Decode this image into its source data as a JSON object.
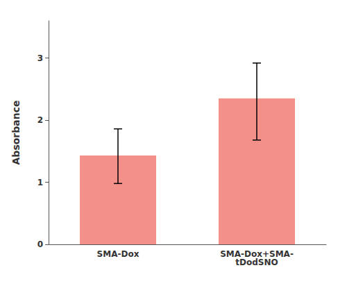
{
  "chart_data": {
    "type": "bar",
    "categories": [
      "SMA-Dox",
      "SMA-Dox+SMA-\ntDodSNO"
    ],
    "values": [
      1.43,
      2.35
    ],
    "errors_upper": [
      0.43,
      0.57
    ],
    "errors_lower": [
      0.45,
      0.67
    ],
    "color": "#F4908A",
    "ylabel": "Absorbance",
    "ylim": [
      0,
      3.6
    ],
    "yticks": [
      0,
      1,
      2,
      3
    ],
    "grid": false
  }
}
